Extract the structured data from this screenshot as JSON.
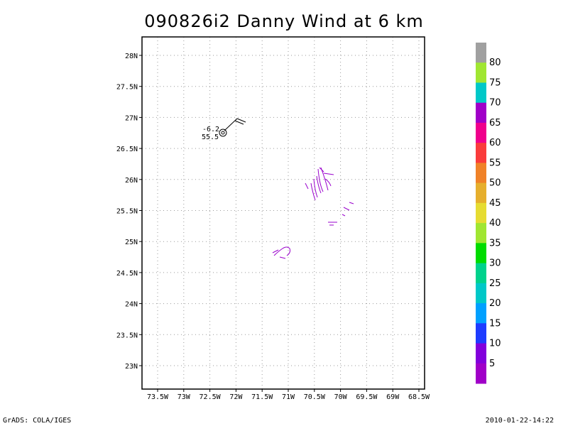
{
  "title": "090826i2 Danny Wind at 6 km",
  "footer_left": "GrADS: COLA/IGES",
  "footer_right": "2010-01-22-14:22",
  "map": {
    "lat_labels": [
      "28N",
      "27.5N",
      "27N",
      "26.5N",
      "26N",
      "25.5N",
      "25N",
      "24.5N",
      "24N",
      "23.5N",
      "23N"
    ],
    "lon_labels": [
      "73.5W",
      "73W",
      "72.5W",
      "72W",
      "71.5W",
      "71W",
      "70.5W",
      "70W",
      "69.5W",
      "69W",
      "68.5W"
    ],
    "storm_marker": {
      "symbol": "tropical-storm-symbol",
      "label_top": "-6.2",
      "label_bottom": "55.5"
    },
    "wind_color": "#9900cc"
  },
  "colorbar": {
    "labels": [
      "80",
      "75",
      "70",
      "65",
      "60",
      "55",
      "50",
      "45",
      "40",
      "35",
      "30",
      "25",
      "20",
      "15",
      "10",
      "5"
    ],
    "colors": [
      "#a0a0a0",
      "#a0e632",
      "#00c8c8",
      "#a000c8",
      "#f0008c",
      "#fa3c3c",
      "#f08228",
      "#e6af2d",
      "#e6dc32",
      "#a0e632",
      "#00dc00",
      "#00d28c",
      "#00c8c8",
      "#00a0ff",
      "#1e3cff",
      "#8200dc",
      "#a000c8"
    ]
  }
}
